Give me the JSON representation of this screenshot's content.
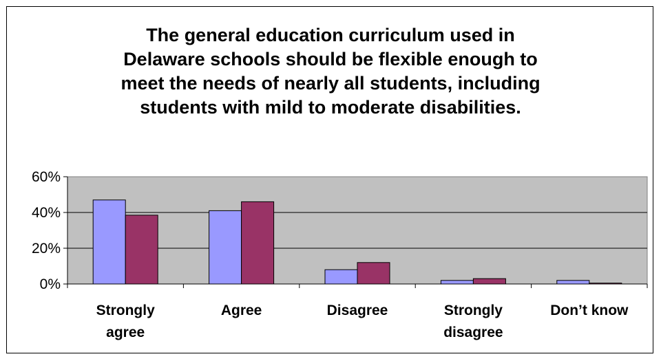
{
  "chart_data": {
    "type": "bar",
    "title": "The general education curriculum used in\nDelaware schools should be flexible enough to\nmeet the needs of nearly all students, including\nstudents with mild to moderate disabilities.",
    "categories": [
      "Strongly\nagree",
      "Agree",
      "Disagree",
      "Strongly\ndisagree",
      "Don’t know"
    ],
    "series": [
      {
        "values": [
          47,
          41,
          8,
          2,
          2
        ],
        "color": "#9999ff"
      },
      {
        "values": [
          38.5,
          46,
          12,
          3,
          0.5
        ],
        "color": "#993366"
      }
    ],
    "yticks": [
      "0%",
      "20%",
      "40%",
      "60%"
    ],
    "ylim": [
      0,
      60
    ],
    "grid": true,
    "plot_background": "#c0c0c0",
    "legend": "none"
  }
}
